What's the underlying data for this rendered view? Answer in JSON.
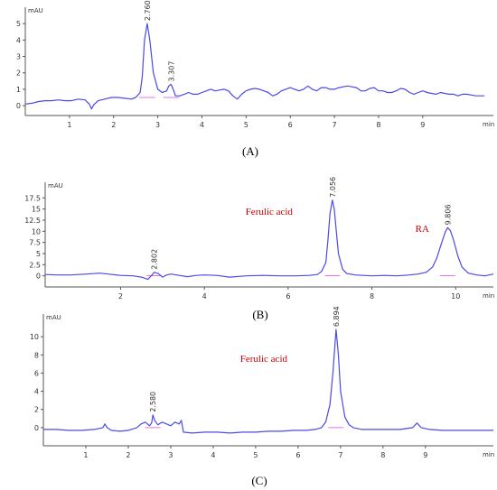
{
  "chart_data": [
    {
      "type": "line",
      "caption": "(A)",
      "y_unit": "mAU",
      "x_unit": "min",
      "xlim": [
        0,
        10.6
      ],
      "ylim": [
        -0.6,
        6
      ],
      "x_ticks": [
        "1",
        "2",
        "3",
        "4",
        "5",
        "6",
        "7",
        "8",
        "9"
      ],
      "x_tick_values": [
        1,
        2,
        3,
        4,
        5,
        6,
        7,
        8,
        9
      ],
      "y_ticks": [
        "0",
        "1",
        "2",
        "3",
        "4",
        "5"
      ],
      "y_tick_values": [
        0,
        1,
        2,
        3,
        4,
        5
      ],
      "peaks": [
        {
          "label": "2.760",
          "rt": 2.76,
          "height": 5.0
        },
        {
          "label": "3.307",
          "rt": 3.307,
          "height": 1.3
        }
      ],
      "compound_labels": [],
      "color": "#4a4ae6",
      "baseline_color": "#e040e0",
      "series": [
        {
          "x": [
            0.0,
            0.15,
            0.3,
            0.45,
            0.6,
            0.75,
            0.9,
            1.05,
            1.2,
            1.35,
            1.45,
            1.5,
            1.55,
            1.65,
            1.8,
            1.95,
            2.1,
            2.25,
            2.4,
            2.5,
            2.6,
            2.65,
            2.7,
            2.76,
            2.82,
            2.9,
            3.0,
            3.1,
            3.2,
            3.25,
            3.3,
            3.35,
            3.4,
            3.5,
            3.6,
            3.7,
            3.8,
            3.9,
            4.0,
            4.1,
            4.2,
            4.3,
            4.4,
            4.5,
            4.6,
            4.7,
            4.8,
            4.9,
            5.0,
            5.1,
            5.2,
            5.3,
            5.4,
            5.5,
            5.6,
            5.7,
            5.8,
            5.9,
            6.0,
            6.1,
            6.2,
            6.3,
            6.4,
            6.5,
            6.6,
            6.7,
            6.8,
            6.9,
            7.0,
            7.1,
            7.2,
            7.3,
            7.4,
            7.5,
            7.6,
            7.7,
            7.8,
            7.9,
            8.0,
            8.1,
            8.2,
            8.3,
            8.4,
            8.5,
            8.6,
            8.7,
            8.8,
            8.9,
            9.0,
            9.1,
            9.2,
            9.3,
            9.4,
            9.5,
            9.6,
            9.7,
            9.8,
            9.9,
            10.0,
            10.1,
            10.2,
            10.4
          ],
          "y": [
            0.1,
            0.15,
            0.25,
            0.3,
            0.3,
            0.35,
            0.3,
            0.3,
            0.4,
            0.35,
            0.1,
            -0.2,
            0.05,
            0.3,
            0.4,
            0.5,
            0.5,
            0.45,
            0.4,
            0.5,
            0.8,
            1.8,
            4.0,
            5.0,
            4.0,
            2.0,
            1.0,
            0.8,
            0.9,
            1.2,
            1.3,
            1.0,
            0.6,
            0.6,
            0.7,
            0.8,
            0.7,
            0.7,
            0.8,
            0.9,
            1.0,
            0.9,
            0.95,
            1.0,
            0.9,
            0.6,
            0.4,
            0.7,
            0.9,
            1.0,
            1.05,
            1.0,
            0.9,
            0.8,
            0.6,
            0.7,
            0.9,
            1.0,
            1.1,
            1.0,
            0.9,
            1.0,
            1.2,
            1.0,
            0.9,
            1.1,
            1.1,
            1.0,
            1.0,
            1.1,
            1.15,
            1.2,
            1.15,
            1.1,
            0.9,
            0.9,
            1.05,
            1.1,
            0.9,
            0.9,
            0.8,
            0.8,
            0.9,
            1.05,
            1.0,
            0.8,
            0.7,
            0.8,
            0.9,
            0.8,
            0.75,
            0.7,
            0.8,
            0.75,
            0.7,
            0.7,
            0.6,
            0.7,
            0.7,
            0.65,
            0.6,
            0.6
          ]
        }
      ]
    },
    {
      "type": "line",
      "caption": "(B)",
      "y_unit": "mAU",
      "x_unit": "min",
      "xlim": [
        0.2,
        10.9
      ],
      "ylim": [
        -2.5,
        21
      ],
      "x_ticks": [
        "2",
        "4",
        "6",
        "8",
        "10"
      ],
      "x_tick_values": [
        2,
        4,
        6,
        8,
        10
      ],
      "y_ticks": [
        "0",
        "2.5",
        "5",
        "7.5",
        "10",
        "12.5",
        "15",
        "17.5"
      ],
      "y_tick_values": [
        0,
        2.5,
        5,
        7.5,
        10,
        12.5,
        15,
        17.5
      ],
      "peaks": [
        {
          "label": "2.802",
          "rt": 2.802,
          "height": 0.8
        },
        {
          "label": "7.056",
          "rt": 7.056,
          "height": 17.0
        },
        {
          "label": "9.806",
          "rt": 9.806,
          "height": 10.8
        }
      ],
      "compound_labels": [
        {
          "text": "Ferulic acid",
          "rt": 7.056
        },
        {
          "text": "RA",
          "rt": 9.806
        }
      ],
      "color": "#4a4ae6",
      "baseline_color": "#e040e0",
      "series": [
        {
          "x": [
            0.2,
            0.5,
            0.8,
            1.0,
            1.2,
            1.5,
            1.8,
            2.0,
            2.3,
            2.5,
            2.65,
            2.75,
            2.8,
            2.9,
            3.0,
            3.1,
            3.2,
            3.4,
            3.6,
            3.8,
            4.0,
            4.3,
            4.6,
            5.0,
            5.4,
            5.8,
            6.2,
            6.5,
            6.7,
            6.8,
            6.9,
            6.95,
            7.0,
            7.056,
            7.1,
            7.15,
            7.2,
            7.3,
            7.4,
            7.6,
            7.8,
            8.0,
            8.3,
            8.6,
            8.9,
            9.1,
            9.3,
            9.45,
            9.55,
            9.65,
            9.75,
            9.806,
            9.87,
            9.95,
            10.05,
            10.15,
            10.3,
            10.5,
            10.7,
            10.9
          ],
          "y": [
            0.3,
            0.2,
            0.2,
            0.3,
            0.4,
            0.6,
            0.3,
            0.1,
            0.0,
            -0.3,
            -0.8,
            0.2,
            0.8,
            0.5,
            -0.3,
            0.2,
            0.4,
            0.1,
            -0.2,
            0.1,
            0.2,
            0.1,
            -0.3,
            0.0,
            0.1,
            0.0,
            0.0,
            0.1,
            0.3,
            1.0,
            3.0,
            8.0,
            14.0,
            17.0,
            15.0,
            10.0,
            5.0,
            1.5,
            0.5,
            0.2,
            0.1,
            0.0,
            0.1,
            0.0,
            0.2,
            0.4,
            0.8,
            2.0,
            4.0,
            7.0,
            9.8,
            10.8,
            10.2,
            8.0,
            4.5,
            2.0,
            0.6,
            0.2,
            0.0,
            0.4
          ]
        }
      ]
    },
    {
      "type": "line",
      "caption": "(C)",
      "y_unit": "mAU",
      "x_unit": "min",
      "xlim": [
        0.0,
        10.6
      ],
      "ylim": [
        -2.0,
        12.5
      ],
      "x_ticks": [
        "1",
        "2",
        "3",
        "4",
        "5",
        "6",
        "7",
        "8",
        "9"
      ],
      "x_tick_values": [
        1,
        2,
        3,
        4,
        5,
        6,
        7,
        8,
        9
      ],
      "y_ticks": [
        "0",
        "2",
        "4",
        "6",
        "8",
        "10"
      ],
      "y_tick_values": [
        0,
        2,
        4,
        6,
        8,
        10
      ],
      "peaks": [
        {
          "label": "2.580",
          "rt": 2.58,
          "height": 1.4
        },
        {
          "label": "6.894",
          "rt": 6.894,
          "height": 10.8
        }
      ],
      "compound_labels": [
        {
          "text": "Ferulic acid",
          "rt": 6.894
        }
      ],
      "color": "#4a4ae6",
      "baseline_color": "#e040e0",
      "series": [
        {
          "x": [
            0.0,
            0.3,
            0.6,
            0.9,
            1.2,
            1.4,
            1.45,
            1.5,
            1.6,
            1.8,
            2.0,
            2.2,
            2.3,
            2.4,
            2.5,
            2.55,
            2.58,
            2.62,
            2.7,
            2.8,
            2.9,
            3.0,
            3.1,
            3.2,
            3.25,
            3.3,
            3.5,
            3.8,
            4.1,
            4.4,
            4.7,
            5.0,
            5.3,
            5.6,
            5.9,
            6.2,
            6.4,
            6.55,
            6.65,
            6.75,
            6.82,
            6.894,
            6.95,
            7.0,
            7.1,
            7.2,
            7.3,
            7.5,
            7.8,
            8.1,
            8.4,
            8.7,
            8.8,
            8.9,
            9.1,
            9.4,
            9.7,
            10.0,
            10.3,
            10.6
          ],
          "y": [
            -0.2,
            -0.2,
            -0.3,
            -0.3,
            -0.2,
            0.0,
            0.4,
            0.0,
            -0.3,
            -0.4,
            -0.3,
            0.0,
            0.4,
            0.6,
            0.2,
            0.5,
            1.4,
            0.8,
            0.3,
            0.6,
            0.4,
            0.2,
            0.6,
            0.4,
            0.8,
            -0.5,
            -0.6,
            -0.5,
            -0.5,
            -0.6,
            -0.5,
            -0.5,
            -0.4,
            -0.4,
            -0.3,
            -0.3,
            -0.2,
            0.0,
            0.6,
            2.5,
            6.0,
            10.8,
            8.0,
            4.0,
            1.2,
            0.3,
            0.0,
            -0.2,
            -0.2,
            -0.2,
            -0.2,
            0.0,
            0.5,
            0.0,
            -0.2,
            -0.3,
            -0.3,
            -0.3,
            -0.3,
            -0.3
          ]
        }
      ]
    }
  ]
}
